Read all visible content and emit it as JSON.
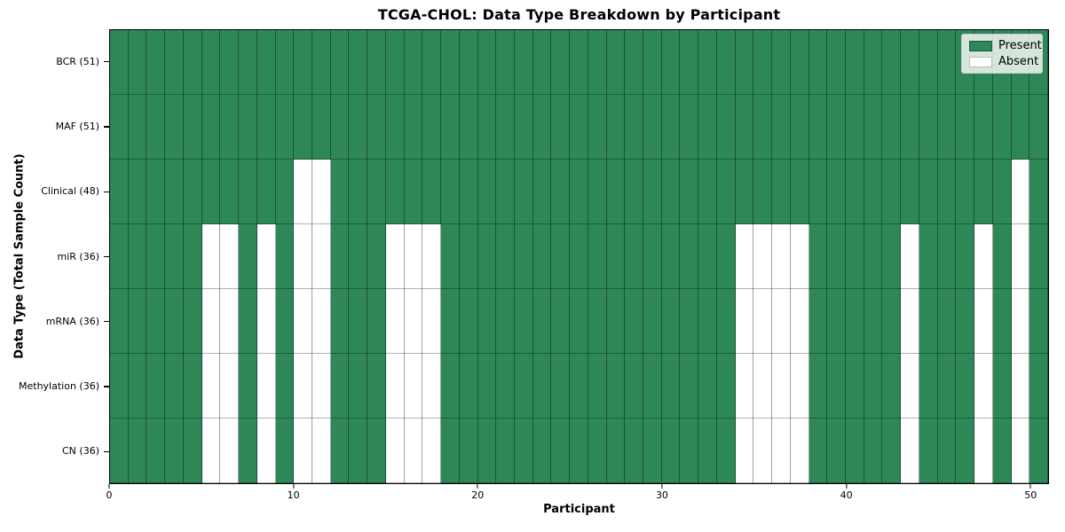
{
  "chart_data": {
    "type": "heatmap",
    "title": "TCGA-CHOL: Data Type Breakdown by Participant",
    "xlabel": "Participant",
    "ylabel": "Data Type (Total Sample Count)",
    "x_axis": {
      "min": 0,
      "max": 51,
      "tick_values": [
        0,
        10,
        20,
        30,
        40,
        50
      ]
    },
    "n_participants": 51,
    "cell_states": [
      "Present",
      "Absent"
    ],
    "rows": [
      {
        "label": "BCR (51)",
        "data_type": "BCR",
        "total_sample_count": 51,
        "absent_participants": []
      },
      {
        "label": "MAF (51)",
        "data_type": "MAF",
        "total_sample_count": 51,
        "absent_participants": []
      },
      {
        "label": "Clinical (48)",
        "data_type": "Clinical",
        "total_sample_count": 48,
        "absent_participants": [
          10,
          11,
          49
        ]
      },
      {
        "label": "miR (36)",
        "data_type": "miR",
        "total_sample_count": 36,
        "absent_participants": [
          5,
          6,
          8,
          10,
          11,
          15,
          16,
          17,
          34,
          35,
          36,
          37,
          43,
          47,
          49
        ]
      },
      {
        "label": "mRNA (36)",
        "data_type": "mRNA",
        "total_sample_count": 36,
        "absent_participants": [
          5,
          6,
          8,
          10,
          11,
          15,
          16,
          17,
          34,
          35,
          36,
          37,
          43,
          47,
          49
        ]
      },
      {
        "label": "Methylation (36)",
        "data_type": "Methylation",
        "total_sample_count": 36,
        "absent_participants": [
          5,
          6,
          8,
          10,
          11,
          15,
          16,
          17,
          34,
          35,
          36,
          37,
          43,
          47,
          49
        ]
      },
      {
        "label": "CN (36)",
        "data_type": "CN",
        "total_sample_count": 36,
        "absent_participants": [
          5,
          6,
          8,
          10,
          11,
          15,
          16,
          17,
          34,
          35,
          36,
          37,
          43,
          47,
          49
        ]
      }
    ],
    "legend": {
      "position": "upper right",
      "entries": [
        {
          "label": "Present",
          "color": "#2e8757"
        },
        {
          "label": "Absent",
          "color": "#ffffff"
        }
      ]
    },
    "colors": {
      "present": "#2e8757",
      "absent": "#ffffff",
      "gridline": "rgba(0,0,0,0.38)",
      "spine": "#000000"
    },
    "grid": true
  }
}
